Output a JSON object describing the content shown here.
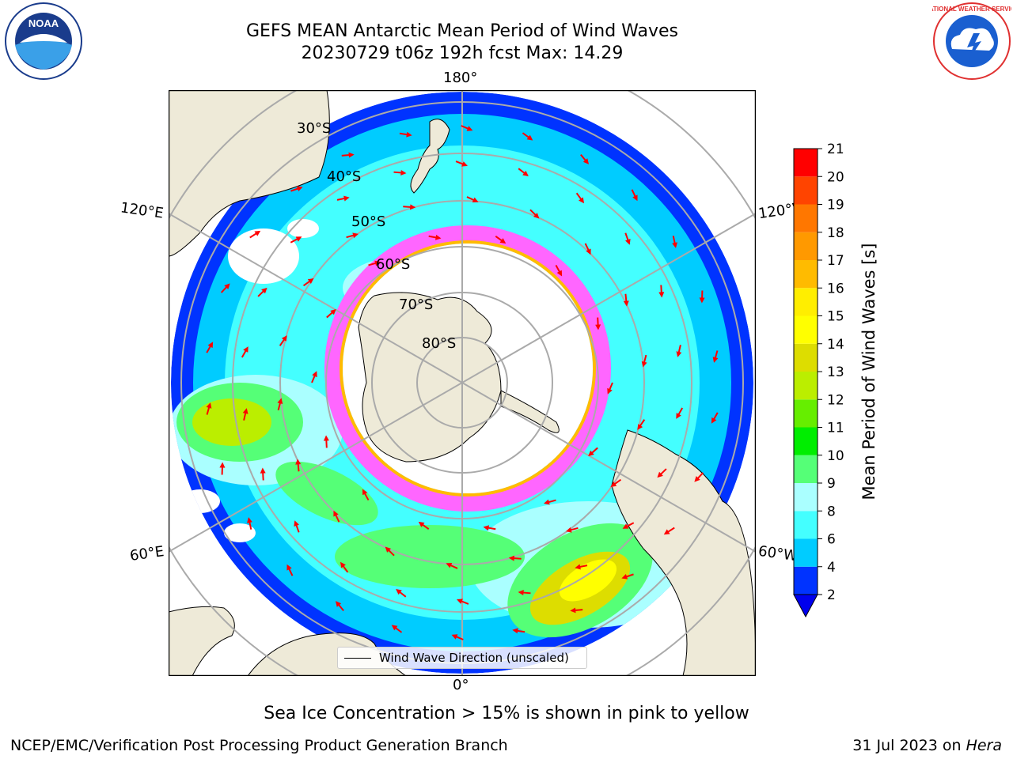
{
  "title": {
    "line1": "GEFS MEAN Antarctic Mean Period of Wind Waves",
    "line2": "20230729 t06z 192h fcst   Max: 14.29"
  },
  "logos": {
    "left": "noaa-logo",
    "left_text": "NOAA",
    "right": "nws-logo",
    "right_text": "NATIONAL WEATHER SERVICE"
  },
  "map": {
    "projection": "south-polar-stereographic",
    "lon_labels": {
      "top": "180°",
      "bottom": "0°",
      "upper_left": "120°E",
      "lower_left": "60°E",
      "upper_right": "120°W",
      "lower_right": "60°W"
    },
    "lat_labels": [
      "30°S",
      "40°S",
      "50°S",
      "60°S",
      "70°S",
      "80°S"
    ],
    "legend": "Wind Wave Direction (unscaled)"
  },
  "colorbar": {
    "label": "Mean Period of Wind Waves [s]",
    "ticks": [
      "2",
      "4",
      "6",
      "8",
      "9",
      "10",
      "11",
      "12",
      "13",
      "14",
      "15",
      "16",
      "17",
      "18",
      "19",
      "20",
      "21"
    ],
    "colors": [
      "#0033ff",
      "#00ccff",
      "#44ffff",
      "#aaffff",
      "#55ff77",
      "#00ee00",
      "#66ee00",
      "#bbee00",
      "#dddd00",
      "#ffff00",
      "#ffee00",
      "#ffbb00",
      "#ff9900",
      "#ff7700",
      "#ff4400",
      "#ff0000"
    ],
    "extend_color": "#0000ee"
  },
  "caption": "Sea Ice Concentration > 15% is shown in pink to yellow",
  "footer": {
    "left": "NCEP/EMC/Verification Post Processing Product Generation Branch",
    "right_date": "31 Jul 2023 on ",
    "right_host": "Hera"
  },
  "colors": {
    "land": "#eeead8",
    "ocean_main": "#44ffff",
    "ocean_deep": "#0033ff",
    "ice": "#ff66ff",
    "arrows": "#ff0000",
    "grid": "#aaaaaa"
  }
}
